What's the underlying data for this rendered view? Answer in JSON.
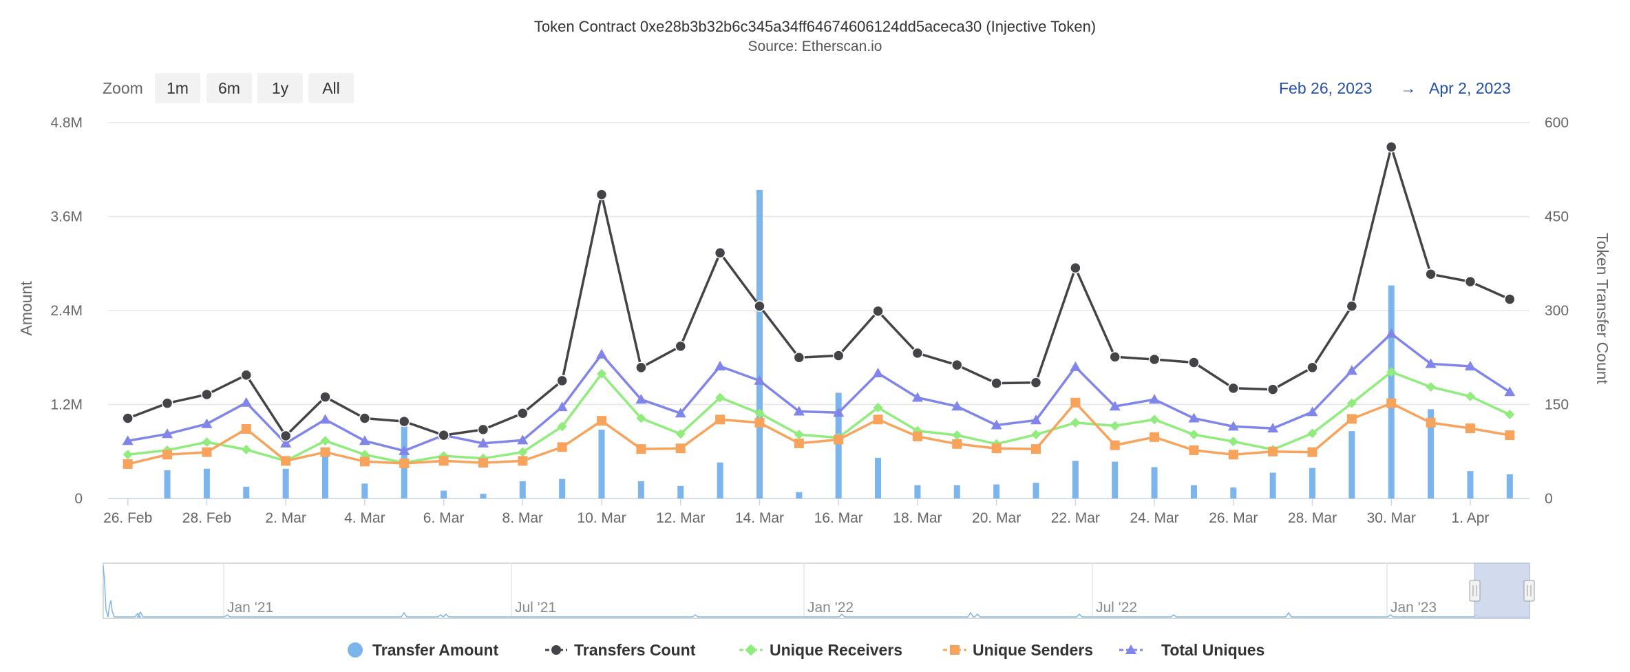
{
  "title": "Token Contract 0xe28b3b32b6c345a34ff64674606124dd5aceca30 (Injective Token)",
  "subtitle": "Source: Etherscan.io",
  "zoom": {
    "label": "Zoom",
    "buttons": [
      "1m",
      "6m",
      "1y",
      "All"
    ]
  },
  "range": {
    "from": "Feb 26, 2023",
    "arrow": "→",
    "to": "Apr 2, 2023"
  },
  "navigator": {
    "labels": [
      "Jan '21",
      "Jul '21",
      "Jan '22",
      "Jul '22",
      "Jan '23"
    ]
  },
  "colors": {
    "transfer_amount": "#7cb5ec",
    "transfers_count": "#434348",
    "unique_receivers": "#90ed7d",
    "unique_senders": "#f7a35c",
    "total_uniques": "#8085e9",
    "range_text": "#2450a8"
  },
  "chart_data": {
    "type": "line",
    "x": [
      "26. Feb",
      "27. Feb",
      "28. Feb",
      "1. Mar",
      "2. Mar",
      "3. Mar",
      "4. Mar",
      "5. Mar",
      "6. Mar",
      "7. Mar",
      "8. Mar",
      "9. Mar",
      "10. Mar",
      "11. Mar",
      "12. Mar",
      "13. Mar",
      "14. Mar",
      "15. Mar",
      "16. Mar",
      "17. Mar",
      "18. Mar",
      "19. Mar",
      "20. Mar",
      "21. Mar",
      "22. Mar",
      "23. Mar",
      "24. Mar",
      "25. Mar",
      "26. Mar",
      "27. Mar",
      "28. Mar",
      "29. Mar",
      "30. Mar",
      "31. Mar",
      "1. Apr",
      "2. Apr"
    ],
    "x_tick_labels": [
      "26. Feb",
      "28. Feb",
      "2. Mar",
      "4. Mar",
      "6. Mar",
      "8. Mar",
      "10. Mar",
      "12. Mar",
      "14. Mar",
      "16. Mar",
      "18. Mar",
      "20. Mar",
      "22. Mar",
      "24. Mar",
      "26. Mar",
      "28. Mar",
      "30. Mar",
      "1. Apr"
    ],
    "ylabel": "Amount",
    "ylim": [
      0,
      4800000
    ],
    "y_ticks": [
      "0",
      "1.2M",
      "2.4M",
      "3.6M",
      "4.8M"
    ],
    "y2label": "Token Transfer Count",
    "y2lim": [
      0,
      600
    ],
    "y2_ticks": [
      "0",
      "150",
      "300",
      "450",
      "600"
    ],
    "grid": true,
    "legend_position": "bottom-center",
    "series": [
      {
        "name": "Transfer Amount",
        "type": "column",
        "axis": "left",
        "values": [
          0,
          360000,
          380000,
          150000,
          380000,
          560000,
          190000,
          920000,
          100000,
          60000,
          220000,
          250000,
          880000,
          220000,
          160000,
          460000,
          3940000,
          80000,
          1350000,
          520000,
          170000,
          170000,
          180000,
          200000,
          480000,
          470000,
          400000,
          170000,
          140000,
          330000,
          390000,
          860000,
          2720000,
          1140000,
          350000,
          310000
        ]
      },
      {
        "name": "Transfers Count",
        "type": "line",
        "axis": "right",
        "values": [
          128,
          152,
          166,
          197,
          100,
          162,
          128,
          123,
          101,
          110,
          136,
          188,
          485,
          209,
          243,
          392,
          307,
          225,
          228,
          299,
          232,
          213,
          184,
          185,
          368,
          226,
          222,
          217,
          176,
          174,
          209,
          307,
          561,
          358,
          346,
          318
        ]
      },
      {
        "name": "Unique Receivers",
        "type": "line",
        "axis": "right",
        "values": [
          70,
          77,
          90,
          78,
          60,
          92,
          70,
          57,
          68,
          64,
          74,
          115,
          199,
          128,
          103,
          161,
          136,
          102,
          97,
          145,
          108,
          101,
          87,
          102,
          121,
          116,
          126,
          102,
          91,
          78,
          104,
          152,
          202,
          178,
          163,
          134
        ]
      },
      {
        "name": "Unique Senders",
        "type": "line",
        "axis": "right",
        "values": [
          55,
          70,
          74,
          111,
          60,
          74,
          59,
          56,
          60,
          57,
          60,
          82,
          124,
          79,
          80,
          126,
          121,
          88,
          94,
          126,
          99,
          87,
          80,
          79,
          153,
          85,
          98,
          77,
          70,
          75,
          74,
          127,
          152,
          121,
          112,
          101
        ]
      },
      {
        "name": "Total Uniques",
        "type": "line",
        "axis": "right",
        "values": [
          92,
          103,
          119,
          153,
          88,
          126,
          92,
          76,
          101,
          88,
          93,
          146,
          230,
          158,
          136,
          211,
          188,
          139,
          137,
          200,
          161,
          147,
          117,
          125,
          210,
          147,
          158,
          128,
          115,
          112,
          138,
          204,
          263,
          215,
          211,
          170
        ]
      }
    ]
  }
}
